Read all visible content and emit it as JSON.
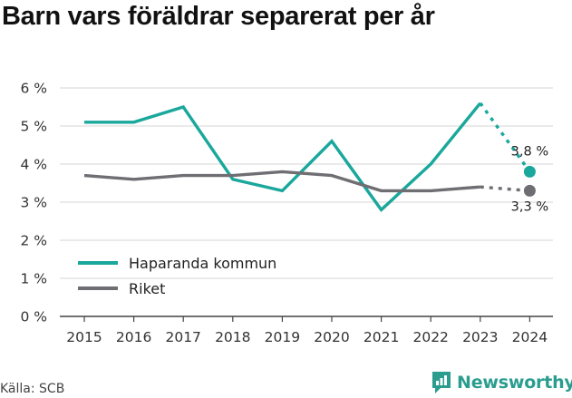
{
  "header": {
    "title": "Barn vars föräldrar separerat per år"
  },
  "footer": {
    "source": "Källa: SCB",
    "brand": "Newsworthy"
  },
  "colors": {
    "haparanda": "#1aa79c",
    "riket": "#6f6e73",
    "grid": "#d6d6d6",
    "axis": "#444444",
    "brand": "#2a9d8f"
  },
  "chart_data": {
    "type": "line",
    "x": [
      "2015",
      "2016",
      "2017",
      "2018",
      "2019",
      "2020",
      "2021",
      "2022",
      "2023",
      "2024"
    ],
    "series": [
      {
        "name": "Haparanda kommun",
        "values": [
          5.1,
          5.1,
          5.5,
          3.6,
          3.3,
          4.6,
          2.8,
          4.0,
          5.6,
          3.8
        ],
        "end_label": "3,8 %"
      },
      {
        "name": "Riket",
        "values": [
          3.7,
          3.6,
          3.7,
          3.7,
          3.8,
          3.7,
          3.3,
          3.3,
          3.4,
          3.3
        ],
        "end_label": "3,3 %"
      }
    ],
    "y_ticks": [
      "0 %",
      "1 %",
      "2 %",
      "3 %",
      "4 %",
      "5 %",
      "6 %"
    ],
    "ylim": [
      0,
      6
    ],
    "grid": true,
    "legend_position": "bottom-left"
  }
}
